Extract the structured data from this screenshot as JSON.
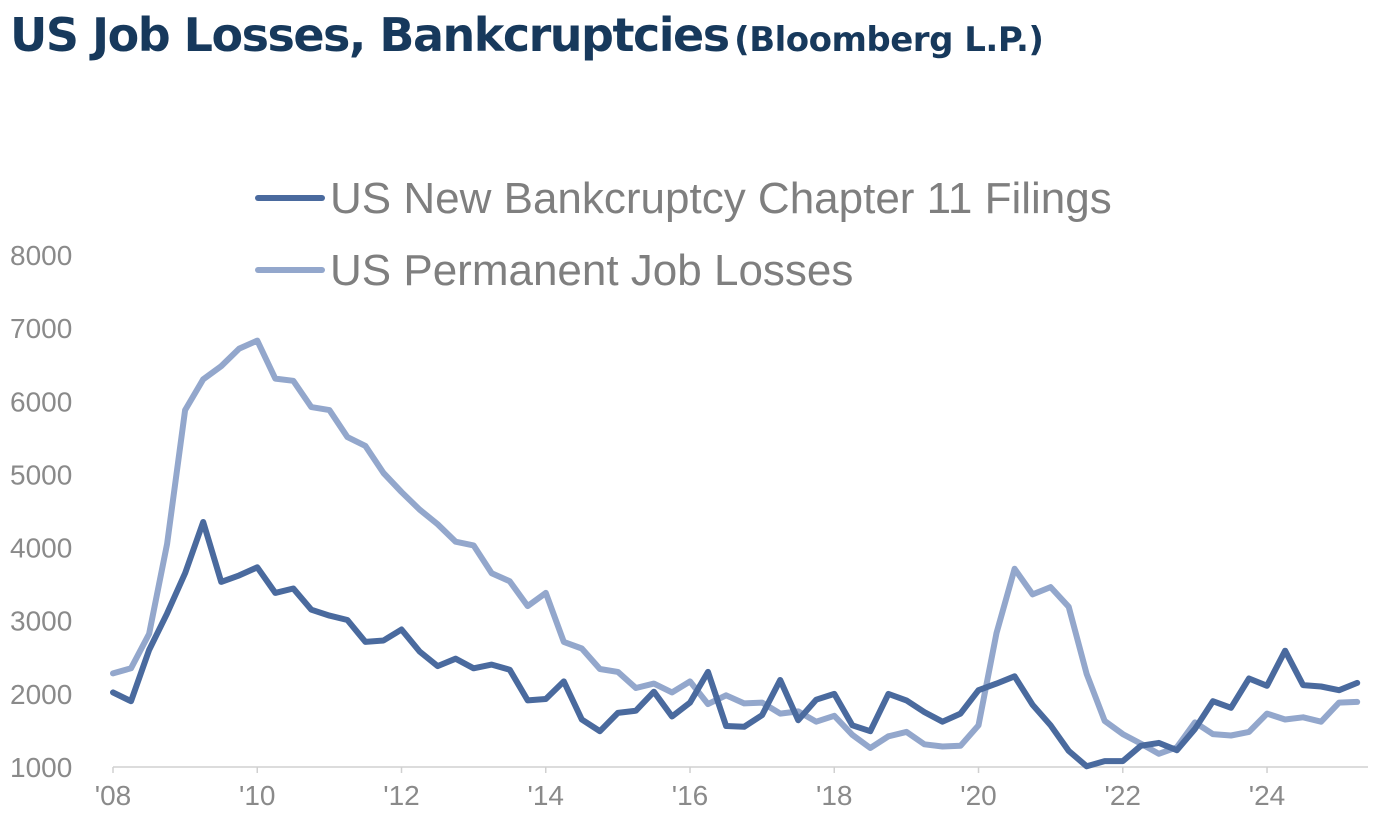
{
  "title": {
    "main": "US Job Losses, Bankcruptcies",
    "source": "(Bloomberg L.P.)"
  },
  "chart_data": {
    "type": "line",
    "title": "US Job Losses, Bankcruptcies (Bloomberg L.P.)",
    "xlabel": "",
    "ylabel": "",
    "xlim": [
      2008.0,
      2025.4
    ],
    "ylim": [
      1000,
      8000
    ],
    "x_ticks": [
      {
        "value": 2008,
        "label": "'08"
      },
      {
        "value": 2010,
        "label": "'10"
      },
      {
        "value": 2012,
        "label": "'12"
      },
      {
        "value": 2014,
        "label": "'14"
      },
      {
        "value": 2016,
        "label": "'16"
      },
      {
        "value": 2018,
        "label": "'18"
      },
      {
        "value": 2020,
        "label": "'20"
      },
      {
        "value": 2022,
        "label": "'22"
      },
      {
        "value": 2024,
        "label": "'24"
      }
    ],
    "y_ticks": [
      1000,
      2000,
      3000,
      4000,
      5000,
      6000,
      7000,
      8000
    ],
    "grid": false,
    "legend_position": "top",
    "series": [
      {
        "name": "US New Bankcruptcy Chapter 11 Filings",
        "color": "#4a6a9e",
        "points": [
          [
            2008.0,
            2020
          ],
          [
            2008.25,
            1900
          ],
          [
            2008.5,
            2600
          ],
          [
            2008.75,
            3100
          ],
          [
            2009.0,
            3650
          ],
          [
            2009.25,
            4350
          ],
          [
            2009.5,
            3530
          ],
          [
            2009.75,
            3620
          ],
          [
            2010.0,
            3730
          ],
          [
            2010.25,
            3380
          ],
          [
            2010.5,
            3440
          ],
          [
            2010.75,
            3150
          ],
          [
            2011.0,
            3070
          ],
          [
            2011.25,
            3010
          ],
          [
            2011.5,
            2710
          ],
          [
            2011.75,
            2730
          ],
          [
            2012.0,
            2880
          ],
          [
            2012.25,
            2580
          ],
          [
            2012.5,
            2380
          ],
          [
            2012.75,
            2480
          ],
          [
            2013.0,
            2350
          ],
          [
            2013.25,
            2400
          ],
          [
            2013.5,
            2330
          ],
          [
            2013.75,
            1910
          ],
          [
            2014.0,
            1930
          ],
          [
            2014.25,
            2170
          ],
          [
            2014.5,
            1650
          ],
          [
            2014.75,
            1490
          ],
          [
            2015.0,
            1740
          ],
          [
            2015.25,
            1770
          ],
          [
            2015.5,
            2030
          ],
          [
            2015.75,
            1690
          ],
          [
            2016.0,
            1880
          ],
          [
            2016.25,
            2300
          ],
          [
            2016.5,
            1560
          ],
          [
            2016.75,
            1550
          ],
          [
            2017.0,
            1710
          ],
          [
            2017.25,
            2190
          ],
          [
            2017.5,
            1640
          ],
          [
            2017.75,
            1920
          ],
          [
            2018.0,
            2000
          ],
          [
            2018.25,
            1570
          ],
          [
            2018.5,
            1490
          ],
          [
            2018.75,
            2000
          ],
          [
            2019.0,
            1910
          ],
          [
            2019.25,
            1750
          ],
          [
            2019.5,
            1620
          ],
          [
            2019.75,
            1730
          ],
          [
            2020.0,
            2050
          ],
          [
            2020.25,
            2140
          ],
          [
            2020.5,
            2240
          ],
          [
            2020.75,
            1850
          ],
          [
            2021.0,
            1570
          ],
          [
            2021.25,
            1220
          ],
          [
            2021.5,
            1010
          ],
          [
            2021.75,
            1080
          ],
          [
            2022.0,
            1080
          ],
          [
            2022.25,
            1290
          ],
          [
            2022.5,
            1330
          ],
          [
            2022.75,
            1230
          ],
          [
            2023.0,
            1520
          ],
          [
            2023.25,
            1900
          ],
          [
            2023.5,
            1810
          ],
          [
            2023.75,
            2210
          ],
          [
            2024.0,
            2110
          ],
          [
            2024.25,
            2590
          ],
          [
            2024.5,
            2120
          ],
          [
            2024.75,
            2100
          ],
          [
            2025.0,
            2050
          ],
          [
            2025.25,
            2150
          ]
        ]
      },
      {
        "name": "US Permanent Job Losses",
        "color": "#93a7cc",
        "points": [
          [
            2008.0,
            2280
          ],
          [
            2008.25,
            2350
          ],
          [
            2008.5,
            2820
          ],
          [
            2008.75,
            4050
          ],
          [
            2009.0,
            5880
          ],
          [
            2009.25,
            6300
          ],
          [
            2009.5,
            6480
          ],
          [
            2009.75,
            6720
          ],
          [
            2010.0,
            6830
          ],
          [
            2010.25,
            6310
          ],
          [
            2010.5,
            6280
          ],
          [
            2010.75,
            5920
          ],
          [
            2011.0,
            5880
          ],
          [
            2011.25,
            5510
          ],
          [
            2011.5,
            5390
          ],
          [
            2011.75,
            5020
          ],
          [
            2012.0,
            4760
          ],
          [
            2012.25,
            4520
          ],
          [
            2012.5,
            4320
          ],
          [
            2012.75,
            4080
          ],
          [
            2013.0,
            4030
          ],
          [
            2013.25,
            3650
          ],
          [
            2013.5,
            3540
          ],
          [
            2013.75,
            3200
          ],
          [
            2014.0,
            3380
          ],
          [
            2014.25,
            2710
          ],
          [
            2014.5,
            2620
          ],
          [
            2014.75,
            2340
          ],
          [
            2015.0,
            2300
          ],
          [
            2015.25,
            2080
          ],
          [
            2015.5,
            2140
          ],
          [
            2015.75,
            2020
          ],
          [
            2016.0,
            2170
          ],
          [
            2016.25,
            1860
          ],
          [
            2016.5,
            1980
          ],
          [
            2016.75,
            1870
          ],
          [
            2017.0,
            1880
          ],
          [
            2017.25,
            1730
          ],
          [
            2017.5,
            1760
          ],
          [
            2017.75,
            1620
          ],
          [
            2018.0,
            1700
          ],
          [
            2018.25,
            1440
          ],
          [
            2018.5,
            1260
          ],
          [
            2018.75,
            1420
          ],
          [
            2019.0,
            1480
          ],
          [
            2019.25,
            1310
          ],
          [
            2019.5,
            1280
          ],
          [
            2019.75,
            1290
          ],
          [
            2020.0,
            1570
          ],
          [
            2020.25,
            2830
          ],
          [
            2020.5,
            3710
          ],
          [
            2020.75,
            3360
          ],
          [
            2021.0,
            3460
          ],
          [
            2021.25,
            3190
          ],
          [
            2021.5,
            2270
          ],
          [
            2021.75,
            1630
          ],
          [
            2022.0,
            1450
          ],
          [
            2022.25,
            1320
          ],
          [
            2022.5,
            1180
          ],
          [
            2022.75,
            1270
          ],
          [
            2023.0,
            1610
          ],
          [
            2023.25,
            1450
          ],
          [
            2023.5,
            1430
          ],
          [
            2023.75,
            1480
          ],
          [
            2024.0,
            1730
          ],
          [
            2024.25,
            1650
          ],
          [
            2024.5,
            1680
          ],
          [
            2024.75,
            1620
          ],
          [
            2025.0,
            1880
          ],
          [
            2025.25,
            1890
          ]
        ]
      }
    ]
  }
}
